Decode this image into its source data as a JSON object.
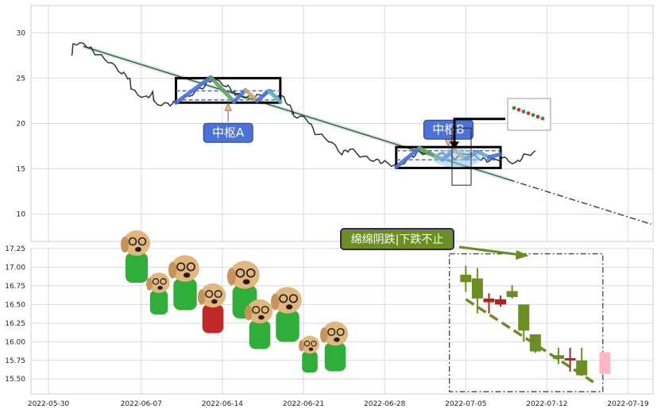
{
  "chart_data": [
    {
      "type": "line",
      "panel": "upper",
      "ylim": [
        7,
        33
      ],
      "yticks": [
        "10",
        "15",
        "20",
        "25",
        "30"
      ],
      "grid": true,
      "price": [
        [
          "2022-06-01",
          27.5
        ],
        [
          "2022-06-01",
          28.9
        ],
        [
          "2022-06-02",
          28.6
        ],
        [
          "2022-06-03",
          27.8
        ],
        [
          "2022-06-04",
          26.9
        ],
        [
          "2022-06-05",
          25.6
        ],
        [
          "2022-06-06",
          25.0
        ],
        [
          "2022-06-06",
          23.7
        ],
        [
          "2022-06-07",
          22.8
        ],
        [
          "2022-06-08",
          23.3
        ],
        [
          "2022-06-08",
          22.2
        ],
        [
          "2022-06-09",
          22.1
        ],
        [
          "2022-06-10",
          22.3
        ],
        [
          "2022-06-11",
          23.1
        ],
        [
          "2022-06-12",
          24.0
        ],
        [
          "2022-06-13",
          24.8
        ],
        [
          "2022-06-13",
          24.9
        ],
        [
          "2022-06-14",
          24.2
        ],
        [
          "2022-06-15",
          23.5
        ],
        [
          "2022-06-15",
          23.2
        ],
        [
          "2022-06-16",
          22.9
        ],
        [
          "2022-06-17",
          23.0
        ],
        [
          "2022-06-18",
          23.5
        ],
        [
          "2022-06-19",
          22.8
        ],
        [
          "2022-06-20",
          21.5
        ],
        [
          "2022-06-20",
          20.9
        ],
        [
          "2022-06-21",
          20.5
        ],
        [
          "2022-06-22",
          19.0
        ],
        [
          "2022-06-23",
          18.2
        ],
        [
          "2022-06-24",
          16.7
        ],
        [
          "2022-06-25",
          17.2
        ],
        [
          "2022-06-26",
          16.3
        ],
        [
          "2022-06-27",
          15.9
        ],
        [
          "2022-06-28",
          15.7
        ],
        [
          "2022-06-29",
          15.3
        ],
        [
          "2022-06-30",
          16.3
        ],
        [
          "2022-07-01",
          16.9
        ],
        [
          "2022-07-02",
          16.5
        ],
        [
          "2022-07-03",
          16.6
        ],
        [
          "2022-07-04",
          16.2
        ],
        [
          "2022-07-05",
          16.8
        ],
        [
          "2022-07-06",
          16.1
        ],
        [
          "2022-07-07",
          15.9
        ],
        [
          "2022-07-08",
          16.2
        ],
        [
          "2022-07-09",
          15.6
        ],
        [
          "2022-07-10",
          16.4
        ],
        [
          "2022-07-11",
          17.0
        ]
      ],
      "trend": [
        [
          "2022-06-02",
          28.5
        ],
        [
          "2022-07-21",
          8.9
        ]
      ],
      "zones": [
        {
          "label": "中枢A",
          "x_start": "2022-06-10",
          "x_end": "2022-06-19",
          "y_low": 22.3,
          "y_high": 25.0,
          "inner_low": 22.6,
          "inner_high": 23.6
        },
        {
          "label": "中枢B",
          "x_start": "2022-06-29",
          "x_end": "2022-07-08",
          "y_low": 15.1,
          "y_high": 17.4,
          "inner_low": 16.0,
          "inner_high": 17.0
        }
      ],
      "strokes_a": [
        [
          "2022-06-10",
          22.3
        ],
        [
          "2022-06-13",
          25.1
        ],
        [
          "2022-06-15",
          22.4
        ],
        [
          "2022-06-16",
          23.7
        ],
        [
          "2022-06-17",
          22.5
        ],
        [
          "2022-06-18",
          23.6
        ],
        [
          "2022-06-19",
          22.4
        ]
      ],
      "strokes_b": [
        [
          "2022-06-29",
          15.2
        ],
        [
          "2022-07-01",
          17.3
        ],
        [
          "2022-07-03",
          16.0
        ],
        [
          "2022-07-04",
          17.1
        ],
        [
          "2022-07-05",
          16.1
        ],
        [
          "2022-07-06",
          16.9
        ],
        [
          "2022-07-07",
          16.3
        ],
        [
          "2022-07-08",
          16.6
        ]
      ]
    },
    {
      "type": "candlestick",
      "panel": "lower",
      "ylim": [
        15.3,
        17.25
      ],
      "yticks": [
        "15.50",
        "15.75",
        "16.00",
        "16.25",
        "16.50",
        "16.75",
        "17.00",
        "17.25"
      ],
      "xticks": [
        "2022-05-30",
        "2022-06-07",
        "2022-06-14",
        "2022-06-21",
        "2022-06-28",
        "2022-07-05",
        "2022-07-12",
        "2022-07-19"
      ],
      "grid": true,
      "candles": [
        {
          "x": "2022-07-05",
          "open": 16.9,
          "close": 16.8,
          "high": 17.02,
          "low": 16.67,
          "color": "#6b8e23"
        },
        {
          "x": "2022-07-06",
          "open": 16.85,
          "close": 16.58,
          "high": 16.99,
          "low": 16.38,
          "color": "#6b8e23"
        },
        {
          "x": "2022-07-07",
          "open": 16.53,
          "close": 16.58,
          "high": 16.65,
          "low": 16.38,
          "color": "#b22222"
        },
        {
          "x": "2022-07-08",
          "open": 16.5,
          "close": 16.57,
          "high": 16.62,
          "low": 16.47,
          "color": "#b22222"
        },
        {
          "x": "2022-07-09",
          "open": 16.68,
          "close": 16.6,
          "high": 16.76,
          "low": 16.58,
          "color": "#6b8e23"
        },
        {
          "x": "2022-07-10",
          "open": 16.5,
          "close": 16.15,
          "high": 16.5,
          "low": 16.0,
          "color": "#6b8e23"
        },
        {
          "x": "2022-07-11",
          "open": 16.1,
          "close": 15.87,
          "high": 16.1,
          "low": 15.85,
          "color": "#6b8e23"
        },
        {
          "x": "2022-07-13",
          "open": 15.77,
          "close": 15.82,
          "high": 15.92,
          "low": 15.7,
          "color": "#6b8e23"
        },
        {
          "x": "2022-07-14",
          "open": 15.75,
          "close": 15.78,
          "high": 15.92,
          "low": 15.6,
          "color": "#b22222"
        },
        {
          "x": "2022-07-15",
          "open": 15.75,
          "close": 15.55,
          "high": 15.92,
          "low": 15.54,
          "color": "#6b8e23"
        },
        {
          "x": "2022-07-17",
          "open": 15.57,
          "close": 15.86,
          "high": 15.86,
          "low": 15.57,
          "color": "#ffb6c1"
        }
      ],
      "downtrend": [
        [
          "2022-07-05",
          16.57
        ],
        [
          "2022-07-16",
          15.46
        ]
      ],
      "annotation": "绵绵阴跌|下跌不止"
    }
  ],
  "colors": {
    "price": "#333333",
    "trend": "#2f4f4f",
    "zone": "#000000",
    "zone_inner": "#4169e1",
    "label_bg": "#4a72d9",
    "annotation_bg": "#6b8e23",
    "annotation_border": "#3a1f6b",
    "down_candle": "#6b8e23",
    "up_candle": "#b22222",
    "grid": "#d9d9d9"
  }
}
